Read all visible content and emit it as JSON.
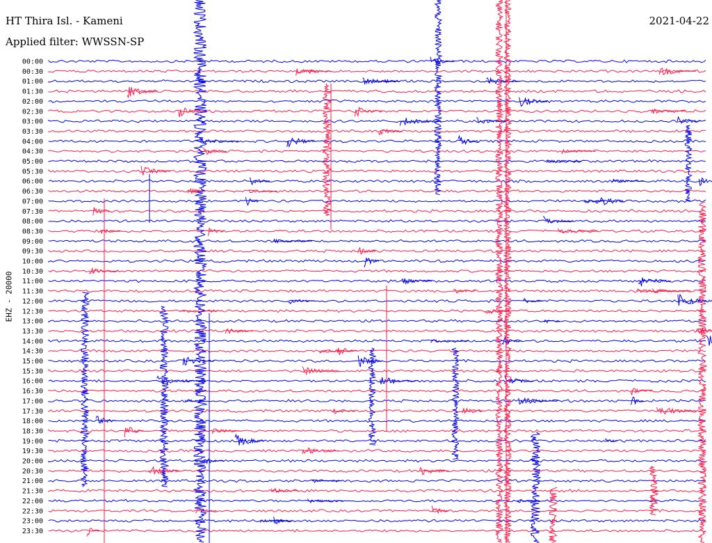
{
  "header": {
    "station": "HT Thira Isl. - Kameni",
    "filter": "Applied filter: WWSSN-SP",
    "date": "2021-04-22"
  },
  "chart_data": {
    "type": "line",
    "title": "HT Thira Isl. - Kameni",
    "subtitle": "Applied filter: WWSSN-SP",
    "ylabel": "EHZ - 20000",
    "y_tick_labels": [
      "00:00",
      "00:30",
      "01:00",
      "01:30",
      "02:00",
      "02:30",
      "03:00",
      "03:30",
      "04:00",
      "04:30",
      "05:00",
      "05:30",
      "06:00",
      "06:30",
      "07:00",
      "07:30",
      "08:00",
      "08:30",
      "09:00",
      "09:30",
      "10:00",
      "10:30",
      "11:00",
      "11:30",
      "12:00",
      "12:30",
      "13:00",
      "13:30",
      "14:00",
      "14:30",
      "15:00",
      "15:30",
      "16:00",
      "16:30",
      "17:00",
      "17:30",
      "18:00",
      "18:30",
      "19:00",
      "19:30",
      "20:00",
      "20:30",
      "21:00",
      "21:30",
      "22:00",
      "22:30",
      "23:00",
      "23:30"
    ],
    "trace_colors": [
      "#0000ee",
      "#ff1a4a"
    ],
    "grid": false
  }
}
